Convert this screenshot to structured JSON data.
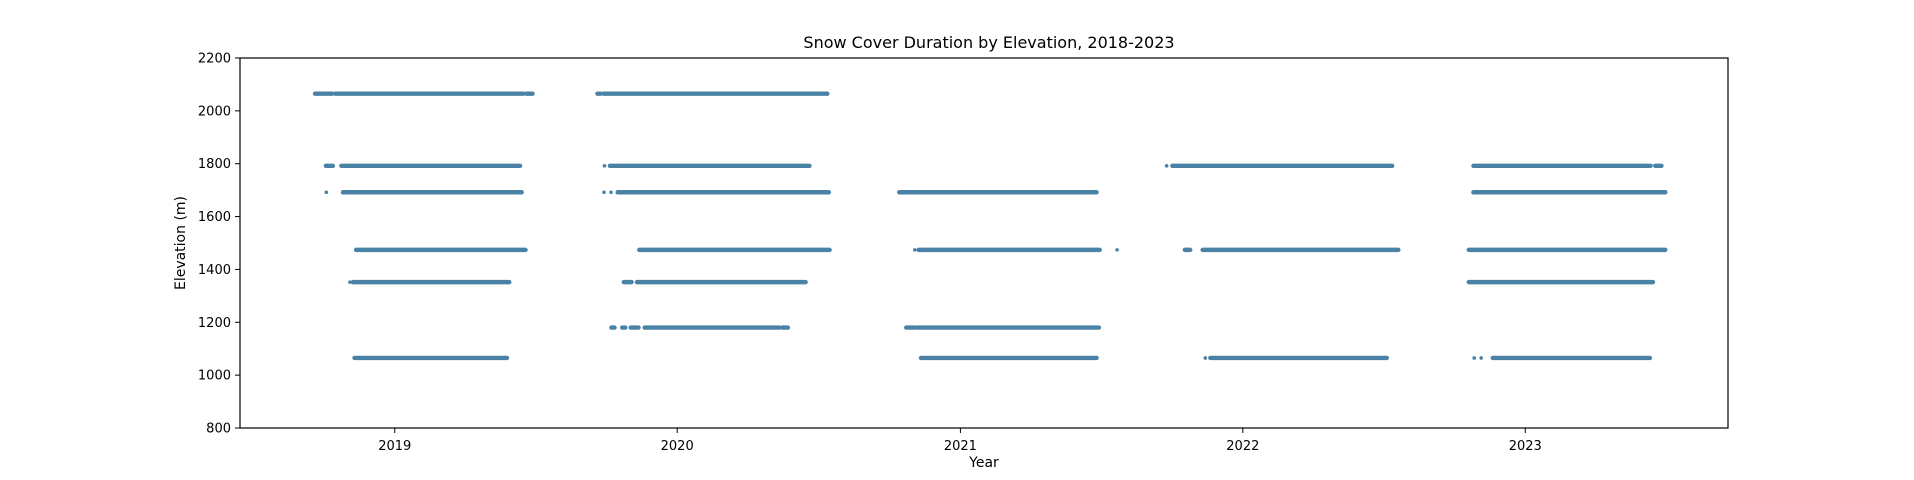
{
  "chart_data": {
    "type": "scatter",
    "title": "Snow Cover Duration by Elevation, 2018-2023",
    "xlabel": "Year",
    "ylabel": "Elevation (m)",
    "xlim": [
      "2018-06-15",
      "2023-09-20"
    ],
    "ylim": [
      800,
      2200
    ],
    "x_ticks": [
      {
        "date": "2019-01-01",
        "label": "2019"
      },
      {
        "date": "2020-01-01",
        "label": "2020"
      },
      {
        "date": "2021-01-01",
        "label": "2021"
      },
      {
        "date": "2022-01-01",
        "label": "2022"
      },
      {
        "date": "2023-01-01",
        "label": "2023"
      }
    ],
    "y_ticks": [
      800,
      1000,
      1200,
      1400,
      1600,
      1800,
      2000,
      2200
    ],
    "grid": false,
    "legend": "none",
    "marker_color": "#4a82a6",
    "series": [
      {
        "points": [
          {
            "elevation": 2065,
            "segments": [
              [
                "2018-09-20",
                "2018-10-12"
              ],
              [
                "2018-10-16",
                "2019-06-16"
              ],
              [
                "2019-06-20",
                "2019-06-28"
              ]
            ]
          },
          {
            "elevation": 1792,
            "segments": [
              [
                "2018-10-04",
                "2018-10-13"
              ],
              [
                "2018-10-24",
                "2019-06-12"
              ]
            ]
          },
          {
            "elevation": 1692,
            "segments": [
              [
                "2018-10-04",
                "2018-10-05"
              ],
              [
                "2018-10-26",
                "2019-06-14"
              ]
            ]
          },
          {
            "elevation": 1474,
            "segments": [
              [
                "2018-11-12",
                "2019-06-19"
              ]
            ]
          },
          {
            "elevation": 1352,
            "segments": [
              [
                "2018-11-03",
                "2018-11-05"
              ],
              [
                "2018-11-08",
                "2019-05-29"
              ]
            ]
          },
          {
            "elevation": 1065,
            "segments": [
              [
                "2018-11-10",
                "2019-05-26"
              ]
            ]
          },
          {
            "elevation": 2065,
            "segments": [
              [
                "2019-09-20",
                "2019-09-24"
              ],
              [
                "2019-09-28",
                "2020-07-13"
              ]
            ]
          },
          {
            "elevation": 1792,
            "segments": [
              [
                "2019-09-28",
                "2019-09-30"
              ],
              [
                "2019-10-06",
                "2020-06-20"
              ]
            ]
          },
          {
            "elevation": 1692,
            "segments": [
              [
                "2019-09-28",
                "2019-09-29"
              ],
              [
                "2019-10-06",
                "2019-10-09"
              ],
              [
                "2019-10-16",
                "2020-07-15"
              ]
            ]
          },
          {
            "elevation": 1474,
            "segments": [
              [
                "2019-11-13",
                "2020-07-16"
              ]
            ]
          },
          {
            "elevation": 1352,
            "segments": [
              [
                "2019-10-24",
                "2019-11-03"
              ],
              [
                "2019-11-10",
                "2020-06-15"
              ]
            ]
          },
          {
            "elevation": 1180,
            "segments": [
              [
                "2019-10-08",
                "2019-10-12"
              ],
              [
                "2019-10-22",
                "2019-10-26"
              ],
              [
                "2019-11-02",
                "2019-11-12"
              ],
              [
                "2019-11-20",
                "2020-05-12"
              ],
              [
                "2020-05-16",
                "2020-05-23"
              ]
            ]
          },
          {
            "elevation": 1692,
            "segments": [
              [
                "2020-10-14",
                "2021-06-26"
              ]
            ]
          },
          {
            "elevation": 1474,
            "segments": [
              [
                "2020-11-02",
                "2020-11-04"
              ],
              [
                "2020-11-08",
                "2021-06-30"
              ],
              [
                "2021-07-22",
                "2021-07-23"
              ]
            ]
          },
          {
            "elevation": 1180,
            "segments": [
              [
                "2020-10-23",
                "2020-11-03"
              ],
              [
                "2020-11-06",
                "2021-06-29"
              ]
            ]
          },
          {
            "elevation": 1065,
            "segments": [
              [
                "2020-11-11",
                "2021-06-26"
              ]
            ]
          },
          {
            "elevation": 1792,
            "segments": [
              [
                "2021-09-24",
                "2021-09-25"
              ],
              [
                "2021-10-02",
                "2022-07-13"
              ]
            ]
          },
          {
            "elevation": 1474,
            "segments": [
              [
                "2021-10-18",
                "2021-10-25"
              ],
              [
                "2021-11-10",
                "2022-07-21"
              ]
            ]
          },
          {
            "elevation": 1065,
            "segments": [
              [
                "2021-11-12",
                "2021-11-15"
              ],
              [
                "2021-11-20",
                "2022-07-06"
              ]
            ]
          },
          {
            "elevation": 1792,
            "segments": [
              [
                "2022-10-26",
                "2023-06-12"
              ],
              [
                "2023-06-18",
                "2023-06-26"
              ]
            ]
          },
          {
            "elevation": 1692,
            "segments": [
              [
                "2022-10-26",
                "2023-07-01"
              ]
            ]
          },
          {
            "elevation": 1474,
            "segments": [
              [
                "2022-10-20",
                "2023-07-01"
              ]
            ]
          },
          {
            "elevation": 1352,
            "segments": [
              [
                "2022-10-20",
                "2023-06-15"
              ]
            ]
          },
          {
            "elevation": 1065,
            "segments": [
              [
                "2022-10-26",
                "2022-10-28"
              ],
              [
                "2022-11-04",
                "2022-11-06"
              ],
              [
                "2022-11-20",
                "2023-06-11"
              ]
            ]
          }
        ]
      }
    ]
  }
}
